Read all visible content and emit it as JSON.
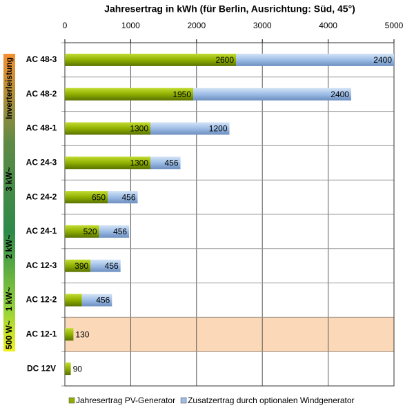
{
  "chart_data": {
    "type": "stacked-barh",
    "title": "Jahresertrag in kWh (für Berlin, Ausrichtung: Süd, 45°)",
    "categories": [
      "AC 48-3",
      "AC 48-2",
      "AC 48-1",
      "AC 24-3",
      "AC 24-2",
      "AC 24-1",
      "AC 12-3",
      "AC 12-2",
      "AC 12-1",
      "DC 12V"
    ],
    "series": [
      {
        "name": "Jahresertrag PV-Generator",
        "color": "#8fb000",
        "values": [
          2600,
          1950,
          1300,
          1300,
          650,
          520,
          390,
          260,
          130,
          90
        ]
      },
      {
        "name": "Zusatzertrag durch optionalen Windgenerator",
        "color": "#9dbde6",
        "values": [
          2400,
          2400,
          1200,
          456,
          456,
          456,
          456,
          456,
          null,
          null
        ]
      }
    ],
    "xlim": [
      0,
      5000
    ],
    "xticks": [
      0,
      1000,
      2000,
      3000,
      4000,
      5000
    ],
    "grid": true,
    "highlight_index": 8,
    "annotations": [
      "Inverterleistung",
      "3 kW~",
      "2 kW~",
      "1 kW~",
      "500 W~"
    ]
  }
}
